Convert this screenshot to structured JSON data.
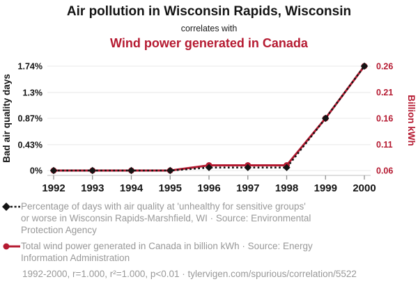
{
  "header": {
    "title": "Air pollution in Wisconsin Rapids, Wisconsin",
    "connector": "correlates with",
    "subtitle": "Wind power generated in Canada"
  },
  "colors": {
    "accent_red": "#b51a31",
    "series_black": "#141414",
    "gridline": "#e8e8e8",
    "axis_line": "#c9c9c9",
    "tick_mark": "#8f8f8f",
    "legend_text": "#989898"
  },
  "chart_data": {
    "type": "line",
    "x": [
      1992,
      1993,
      1994,
      1995,
      1996,
      1997,
      1998,
      1999,
      2000
    ],
    "series": [
      {
        "name": "Percentage of bad air quality days in Wisconsin Rapids-Marshfield, WI",
        "axis": "left",
        "color": "#141414",
        "line_style": "dashed",
        "marker": "diamond",
        "values": [
          0,
          0,
          0,
          0,
          0.05,
          0.05,
          0.05,
          0.87,
          1.74
        ]
      },
      {
        "name": "Total wind power generated in Canada (billion kWh)",
        "axis": "right",
        "color": "#b51a31",
        "line_style": "solid",
        "marker": "circle",
        "values": [
          0.06,
          0.06,
          0.06,
          0.06,
          0.07,
          0.07,
          0.07,
          0.16,
          0.26
        ]
      }
    ],
    "left_axis": {
      "label": "Bad air quality days",
      "tick_labels": [
        "0%",
        "0.43%",
        "0.87%",
        "1.3%",
        "1.74%"
      ],
      "tick_values": [
        0,
        0.43,
        0.87,
        1.3,
        1.74
      ],
      "range": [
        0,
        1.74
      ]
    },
    "right_axis": {
      "label": "Billion kWh",
      "tick_labels": [
        "0.06",
        "0.11",
        "0.16",
        "0.21",
        "0.26"
      ],
      "tick_values": [
        0.06,
        0.11,
        0.16,
        0.21,
        0.26
      ],
      "range": [
        0.06,
        0.26
      ]
    },
    "grid": true,
    "legend_position": "bottom"
  },
  "legend": {
    "items": [
      {
        "marker": "black-diamond-dashed",
        "text": "Percentage of days with air quality at 'unhealthy for sensitive groups'\nor worse in Wisconsin Rapids-Marshfield, WI · Source: Environmental\nProtection Agency"
      },
      {
        "marker": "red-circle-line",
        "text": "Total wind power generated in Canada in billion kWh · Source: Energy\nInformation Administration"
      }
    ]
  },
  "footer": {
    "stats": "1992-2000, r=1.000, r²=1.000, p<0.01 · tylervigen.com/spurious/correlation/5522"
  }
}
